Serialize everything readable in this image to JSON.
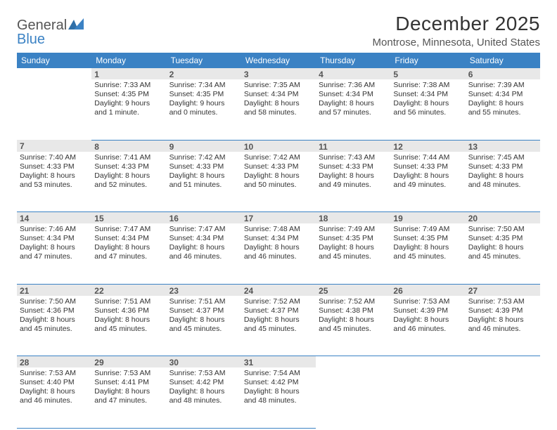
{
  "brand": {
    "name_gray": "General",
    "name_blue": "Blue"
  },
  "title": "December 2025",
  "location": "Montrose, Minnesota, United States",
  "colors": {
    "header_bg": "#3b82c4",
    "header_fg": "#ffffff",
    "daynum_bg": "#e8e8e8",
    "daynum_fg": "#555555",
    "rule": "#3b82c4",
    "page_bg": "#ffffff",
    "text": "#333333"
  },
  "weekdays": [
    "Sunday",
    "Monday",
    "Tuesday",
    "Wednesday",
    "Thursday",
    "Friday",
    "Saturday"
  ],
  "weeks": [
    {
      "nums": [
        "",
        "1",
        "2",
        "3",
        "4",
        "5",
        "6"
      ],
      "cells": [
        null,
        {
          "sunrise": "Sunrise: 7:33 AM",
          "sunset": "Sunset: 4:35 PM",
          "day1": "Daylight: 9 hours",
          "day2": "and 1 minute."
        },
        {
          "sunrise": "Sunrise: 7:34 AM",
          "sunset": "Sunset: 4:35 PM",
          "day1": "Daylight: 9 hours",
          "day2": "and 0 minutes."
        },
        {
          "sunrise": "Sunrise: 7:35 AM",
          "sunset": "Sunset: 4:34 PM",
          "day1": "Daylight: 8 hours",
          "day2": "and 58 minutes."
        },
        {
          "sunrise": "Sunrise: 7:36 AM",
          "sunset": "Sunset: 4:34 PM",
          "day1": "Daylight: 8 hours",
          "day2": "and 57 minutes."
        },
        {
          "sunrise": "Sunrise: 7:38 AM",
          "sunset": "Sunset: 4:34 PM",
          "day1": "Daylight: 8 hours",
          "day2": "and 56 minutes."
        },
        {
          "sunrise": "Sunrise: 7:39 AM",
          "sunset": "Sunset: 4:34 PM",
          "day1": "Daylight: 8 hours",
          "day2": "and 55 minutes."
        }
      ]
    },
    {
      "nums": [
        "7",
        "8",
        "9",
        "10",
        "11",
        "12",
        "13"
      ],
      "cells": [
        {
          "sunrise": "Sunrise: 7:40 AM",
          "sunset": "Sunset: 4:33 PM",
          "day1": "Daylight: 8 hours",
          "day2": "and 53 minutes."
        },
        {
          "sunrise": "Sunrise: 7:41 AM",
          "sunset": "Sunset: 4:33 PM",
          "day1": "Daylight: 8 hours",
          "day2": "and 52 minutes."
        },
        {
          "sunrise": "Sunrise: 7:42 AM",
          "sunset": "Sunset: 4:33 PM",
          "day1": "Daylight: 8 hours",
          "day2": "and 51 minutes."
        },
        {
          "sunrise": "Sunrise: 7:42 AM",
          "sunset": "Sunset: 4:33 PM",
          "day1": "Daylight: 8 hours",
          "day2": "and 50 minutes."
        },
        {
          "sunrise": "Sunrise: 7:43 AM",
          "sunset": "Sunset: 4:33 PM",
          "day1": "Daylight: 8 hours",
          "day2": "and 49 minutes."
        },
        {
          "sunrise": "Sunrise: 7:44 AM",
          "sunset": "Sunset: 4:33 PM",
          "day1": "Daylight: 8 hours",
          "day2": "and 49 minutes."
        },
        {
          "sunrise": "Sunrise: 7:45 AM",
          "sunset": "Sunset: 4:33 PM",
          "day1": "Daylight: 8 hours",
          "day2": "and 48 minutes."
        }
      ]
    },
    {
      "nums": [
        "14",
        "15",
        "16",
        "17",
        "18",
        "19",
        "20"
      ],
      "cells": [
        {
          "sunrise": "Sunrise: 7:46 AM",
          "sunset": "Sunset: 4:34 PM",
          "day1": "Daylight: 8 hours",
          "day2": "and 47 minutes."
        },
        {
          "sunrise": "Sunrise: 7:47 AM",
          "sunset": "Sunset: 4:34 PM",
          "day1": "Daylight: 8 hours",
          "day2": "and 47 minutes."
        },
        {
          "sunrise": "Sunrise: 7:47 AM",
          "sunset": "Sunset: 4:34 PM",
          "day1": "Daylight: 8 hours",
          "day2": "and 46 minutes."
        },
        {
          "sunrise": "Sunrise: 7:48 AM",
          "sunset": "Sunset: 4:34 PM",
          "day1": "Daylight: 8 hours",
          "day2": "and 46 minutes."
        },
        {
          "sunrise": "Sunrise: 7:49 AM",
          "sunset": "Sunset: 4:35 PM",
          "day1": "Daylight: 8 hours",
          "day2": "and 45 minutes."
        },
        {
          "sunrise": "Sunrise: 7:49 AM",
          "sunset": "Sunset: 4:35 PM",
          "day1": "Daylight: 8 hours",
          "day2": "and 45 minutes."
        },
        {
          "sunrise": "Sunrise: 7:50 AM",
          "sunset": "Sunset: 4:35 PM",
          "day1": "Daylight: 8 hours",
          "day2": "and 45 minutes."
        }
      ]
    },
    {
      "nums": [
        "21",
        "22",
        "23",
        "24",
        "25",
        "26",
        "27"
      ],
      "cells": [
        {
          "sunrise": "Sunrise: 7:50 AM",
          "sunset": "Sunset: 4:36 PM",
          "day1": "Daylight: 8 hours",
          "day2": "and 45 minutes."
        },
        {
          "sunrise": "Sunrise: 7:51 AM",
          "sunset": "Sunset: 4:36 PM",
          "day1": "Daylight: 8 hours",
          "day2": "and 45 minutes."
        },
        {
          "sunrise": "Sunrise: 7:51 AM",
          "sunset": "Sunset: 4:37 PM",
          "day1": "Daylight: 8 hours",
          "day2": "and 45 minutes."
        },
        {
          "sunrise": "Sunrise: 7:52 AM",
          "sunset": "Sunset: 4:37 PM",
          "day1": "Daylight: 8 hours",
          "day2": "and 45 minutes."
        },
        {
          "sunrise": "Sunrise: 7:52 AM",
          "sunset": "Sunset: 4:38 PM",
          "day1": "Daylight: 8 hours",
          "day2": "and 45 minutes."
        },
        {
          "sunrise": "Sunrise: 7:53 AM",
          "sunset": "Sunset: 4:39 PM",
          "day1": "Daylight: 8 hours",
          "day2": "and 46 minutes."
        },
        {
          "sunrise": "Sunrise: 7:53 AM",
          "sunset": "Sunset: 4:39 PM",
          "day1": "Daylight: 8 hours",
          "day2": "and 46 minutes."
        }
      ]
    },
    {
      "nums": [
        "28",
        "29",
        "30",
        "31",
        "",
        "",
        ""
      ],
      "cells": [
        {
          "sunrise": "Sunrise: 7:53 AM",
          "sunset": "Sunset: 4:40 PM",
          "day1": "Daylight: 8 hours",
          "day2": "and 46 minutes."
        },
        {
          "sunrise": "Sunrise: 7:53 AM",
          "sunset": "Sunset: 4:41 PM",
          "day1": "Daylight: 8 hours",
          "day2": "and 47 minutes."
        },
        {
          "sunrise": "Sunrise: 7:53 AM",
          "sunset": "Sunset: 4:42 PM",
          "day1": "Daylight: 8 hours",
          "day2": "and 48 minutes."
        },
        {
          "sunrise": "Sunrise: 7:54 AM",
          "sunset": "Sunset: 4:42 PM",
          "day1": "Daylight: 8 hours",
          "day2": "and 48 minutes."
        },
        null,
        null,
        null
      ]
    }
  ]
}
